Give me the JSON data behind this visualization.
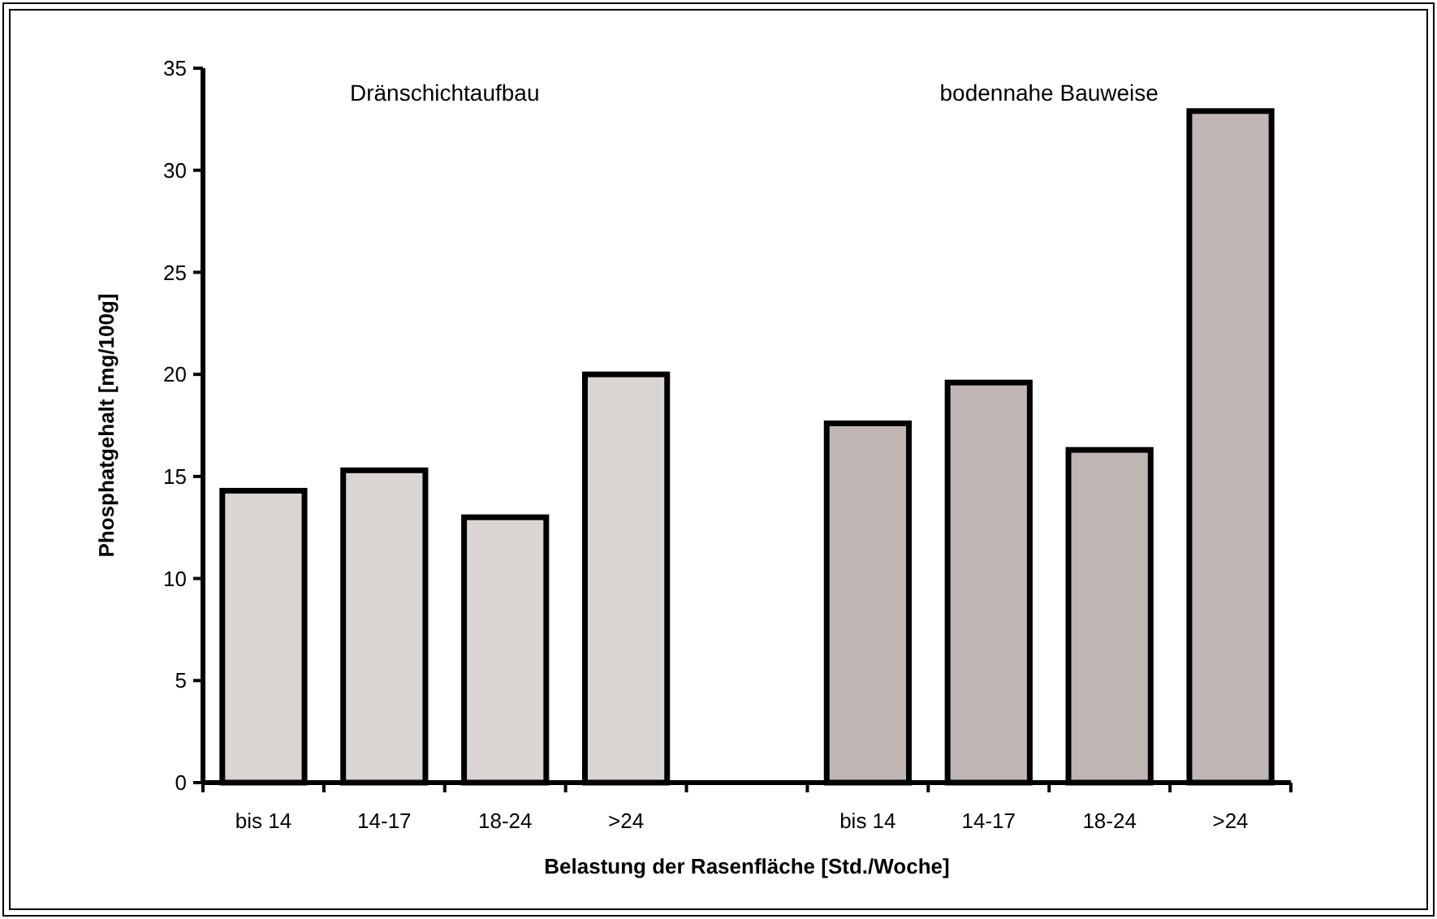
{
  "chart_data": {
    "type": "bar",
    "ylabel": "Phosphatgehalt [mg/100g]",
    "xlabel": "Belastung der Rasenfläche [Std./Woche]",
    "categories": [
      "bis 14",
      "14-17",
      "18-24",
      ">24",
      null,
      "bis 14",
      "14-17",
      "18-24",
      ">24"
    ],
    "values": [
      14.3,
      15.3,
      13.0,
      20.0,
      null,
      17.6,
      19.6,
      16.3,
      32.9
    ],
    "colors": [
      "#dad5d3",
      "#dad5d3",
      "#dad5d3",
      "#dad5d3",
      null,
      "#bfb6b4",
      "#bfb6b4",
      "#bfb6b4",
      "#bfb6b4"
    ],
    "annotations": [
      "Dränschichtaufbau",
      "bodennahe Bauweise"
    ],
    "ylim": [
      0,
      35
    ],
    "yticks": [
      0,
      5,
      10,
      15,
      20,
      25,
      30,
      35
    ],
    "grid": false
  }
}
